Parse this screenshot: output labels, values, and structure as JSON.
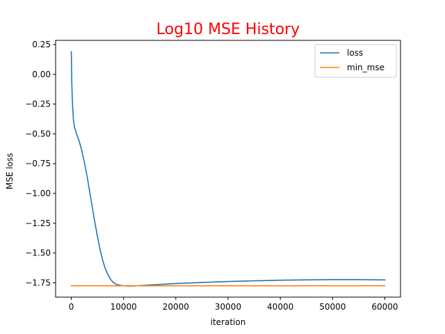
{
  "chart_data": {
    "type": "line",
    "title": "Log10 MSE History",
    "title_color": "#ff0000",
    "xlabel": "iteration",
    "ylabel": "MSE loss",
    "xlim": [
      -3000,
      63000
    ],
    "ylim": [
      -1.87,
      0.285
    ],
    "xticks": [
      0,
      10000,
      20000,
      30000,
      40000,
      50000,
      60000
    ],
    "xtick_labels": [
      "0",
      "10000",
      "20000",
      "30000",
      "40000",
      "50000",
      "60000"
    ],
    "yticks": [
      0.25,
      0.0,
      -0.25,
      -0.5,
      -0.75,
      -1.0,
      -1.25,
      -1.5,
      -1.75
    ],
    "ytick_labels": [
      "0.25",
      "0.00",
      "−0.25",
      "−0.50",
      "−0.75",
      "−1.00",
      "−1.25",
      "−1.50",
      "−1.75"
    ],
    "grid": false,
    "legend_position": "top-right",
    "series": [
      {
        "name": "loss",
        "color": "#1f77b4",
        "x": [
          0,
          100,
          200,
          400,
          600,
          1000,
          1500,
          2000,
          2500,
          3000,
          3500,
          4000,
          4500,
          5000,
          5500,
          6000,
          6500,
          7000,
          7500,
          8000,
          8500,
          9000,
          9500,
          10000,
          10500,
          11000,
          11500,
          12000,
          12500,
          13000,
          14000,
          16000,
          18000,
          20000,
          25000,
          30000,
          35000,
          40000,
          45000,
          50000,
          55000,
          60000
        ],
        "y": [
          0.19,
          -0.08,
          -0.22,
          -0.38,
          -0.44,
          -0.5,
          -0.56,
          -0.64,
          -0.74,
          -0.85,
          -0.98,
          -1.11,
          -1.24,
          -1.36,
          -1.47,
          -1.56,
          -1.63,
          -1.68,
          -1.72,
          -1.745,
          -1.76,
          -1.768,
          -1.772,
          -1.775,
          -1.776,
          -1.777,
          -1.777,
          -1.776,
          -1.775,
          -1.774,
          -1.771,
          -1.766,
          -1.761,
          -1.756,
          -1.747,
          -1.739,
          -1.733,
          -1.728,
          -1.725,
          -1.723,
          -1.723,
          -1.726
        ]
      },
      {
        "name": "min_mse",
        "color": "#ff7f0e",
        "x": [
          0,
          60000
        ],
        "y": [
          -1.775,
          -1.775
        ]
      }
    ]
  }
}
